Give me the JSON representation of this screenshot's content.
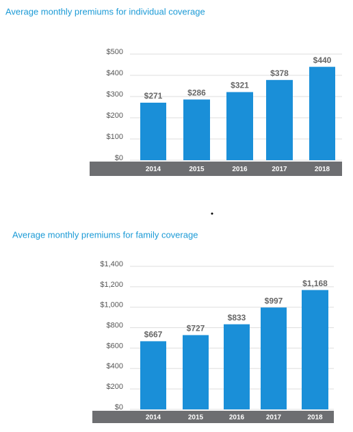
{
  "chart_data": [
    {
      "type": "bar",
      "title": "Average monthly premiums for individual coverage",
      "categories": [
        "2014",
        "2015",
        "2016",
        "2017",
        "2018"
      ],
      "values": [
        271,
        286,
        321,
        378,
        440
      ],
      "value_labels": [
        "$271",
        "$286",
        "$321",
        "$378",
        "$440"
      ],
      "color": "#1a8fd8",
      "ylim": [
        0,
        500
      ],
      "yticks": [
        {
          "value": 0,
          "label": "$0"
        },
        {
          "value": 100,
          "label": "$100"
        },
        {
          "value": 200,
          "label": "$200"
        },
        {
          "value": 300,
          "label": "$300"
        },
        {
          "value": 400,
          "label": "$400"
        },
        {
          "value": 500,
          "label": "$500"
        }
      ],
      "grid": true
    },
    {
      "type": "bar",
      "title": "Average monthly premiums for family coverage",
      "categories": [
        "2014",
        "2015",
        "2016",
        "2017",
        "2018"
      ],
      "values": [
        667,
        727,
        833,
        997,
        1168
      ],
      "value_labels": [
        "$667",
        "$727",
        "$833",
        "$997",
        "$1,168"
      ],
      "color": "#1a8fd8",
      "ylim": [
        0,
        1400
      ],
      "yticks": [
        {
          "value": 0,
          "label": "$0"
        },
        {
          "value": 200,
          "label": "$200"
        },
        {
          "value": 400,
          "label": "$400"
        },
        {
          "value": 600,
          "label": "$600"
        },
        {
          "value": 800,
          "label": "$800"
        },
        {
          "value": 1000,
          "label": "$1,000"
        },
        {
          "value": 1200,
          "label": "$1,200"
        },
        {
          "value": 1400,
          "label": "$1,400"
        }
      ],
      "grid": true
    }
  ]
}
